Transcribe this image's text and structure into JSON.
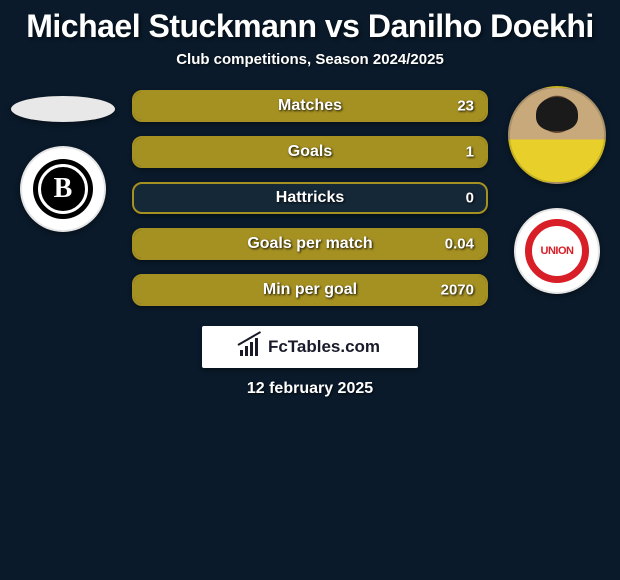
{
  "title": "Michael Stuckmann vs Danilho Doekhi",
  "subtitle": "Club competitions, Season 2024/2025",
  "brand_text": "FcTables.com",
  "date_text": "12 february 2025",
  "colors": {
    "background": "#0a1a2a",
    "bar_border": "#a59022",
    "bar_fill": "#a59022",
    "bar_bg": "#152838",
    "text": "#ffffff",
    "union_red": "#d81e26"
  },
  "stats": [
    {
      "label": "Matches",
      "value": "23",
      "fill_pct": 100
    },
    {
      "label": "Goals",
      "value": "1",
      "fill_pct": 100
    },
    {
      "label": "Hattricks",
      "value": "0",
      "fill_pct": 0
    },
    {
      "label": "Goals per match",
      "value": "0.04",
      "fill_pct": 100
    },
    {
      "label": "Min per goal",
      "value": "2070",
      "fill_pct": 100
    }
  ],
  "left": {
    "player_icon": "player-placeholder",
    "club_icon": "borussia-mgladbach-badge"
  },
  "right": {
    "player_icon": "player-photo",
    "club_icon": "union-berlin-badge"
  }
}
